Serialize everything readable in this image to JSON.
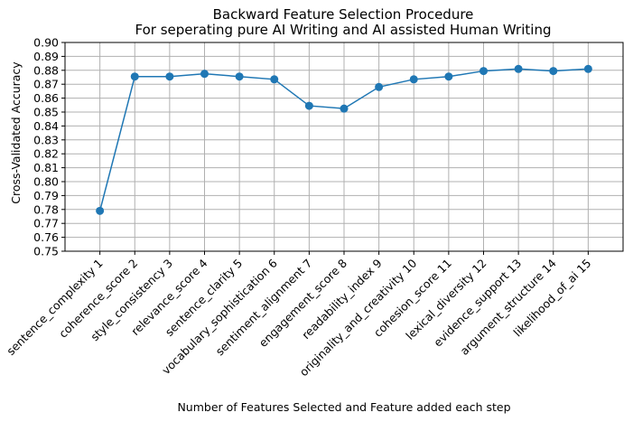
{
  "chart_data": {
    "type": "line",
    "title_line1": "Backward Feature Selection Procedure",
    "title_line2": "For seperating pure AI Writing and AI assisted Human Writing",
    "xlabel": "Number of Features Selected and Feature added each step",
    "ylabel": "Cross-Validated Accuracy",
    "categories": [
      "sentence_complexity 1",
      "coherence_score 2",
      "style_consistency 3",
      "relevance_score 4",
      "sentence_clarity 5",
      "vocabulary_sophistication 6",
      "sentiment_alignment 7",
      "engagement_score 8",
      "readability_index 9",
      "originality_and_creativity 10",
      "cohesion_score 11",
      "lexical_diversity 12",
      "evidence_support 13",
      "argument_structure 14",
      "likelihood_of_ai 15"
    ],
    "values": [
      0.779,
      0.8755,
      0.8755,
      0.8775,
      0.8755,
      0.8735,
      0.8545,
      0.8525,
      0.868,
      0.8735,
      0.8755,
      0.8795,
      0.881,
      0.8795,
      0.881
    ],
    "ylim": [
      0.75,
      0.9
    ],
    "yticks": [
      "0.75",
      "0.76",
      "0.77",
      "0.78",
      "0.79",
      "0.80",
      "0.81",
      "0.82",
      "0.83",
      "0.84",
      "0.85",
      "0.86",
      "0.87",
      "0.88",
      "0.89",
      "0.90"
    ],
    "grid": true,
    "line_color": "#1f77b4",
    "marker": "circle"
  }
}
